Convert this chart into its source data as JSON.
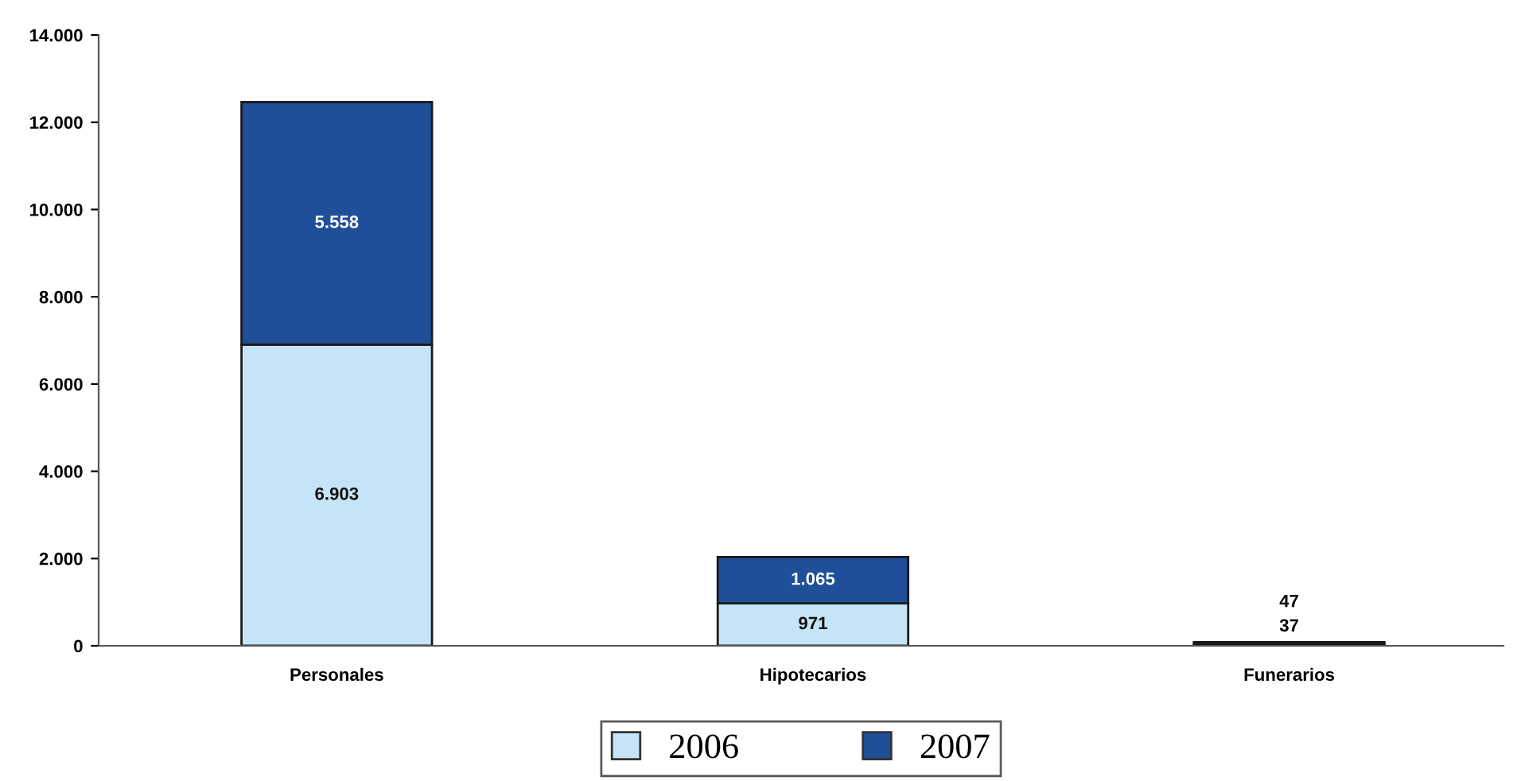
{
  "chart_data": {
    "type": "bar",
    "stacked": true,
    "categories": [
      "Personales",
      "Hipotecarios",
      "Funerarios"
    ],
    "series": [
      {
        "name": "2006",
        "color": "#c6e4f7",
        "values": [
          6903,
          971,
          37
        ],
        "value_labels": [
          "6.903",
          "971",
          "37"
        ]
      },
      {
        "name": "2007",
        "color": "#1f4f99",
        "values": [
          5558,
          1065,
          47
        ],
        "value_labels": [
          "5.558",
          "1.065",
          "47"
        ]
      }
    ],
    "ylim": [
      0,
      14000
    ],
    "yticks": [
      0,
      {
        "value": 2000,
        "label": "2.000"
      },
      {
        "value": 4000,
        "label": "4.000"
      },
      {
        "value": 6000,
        "label": "6.000"
      },
      {
        "value": 8000,
        "label": "8.000"
      },
      {
        "value": 10000,
        "label": "10.000"
      },
      {
        "value": 12000,
        "label": "12.000"
      },
      {
        "value": 14000,
        "label": "14.000"
      }
    ],
    "grid": false,
    "legend": "bottom"
  }
}
